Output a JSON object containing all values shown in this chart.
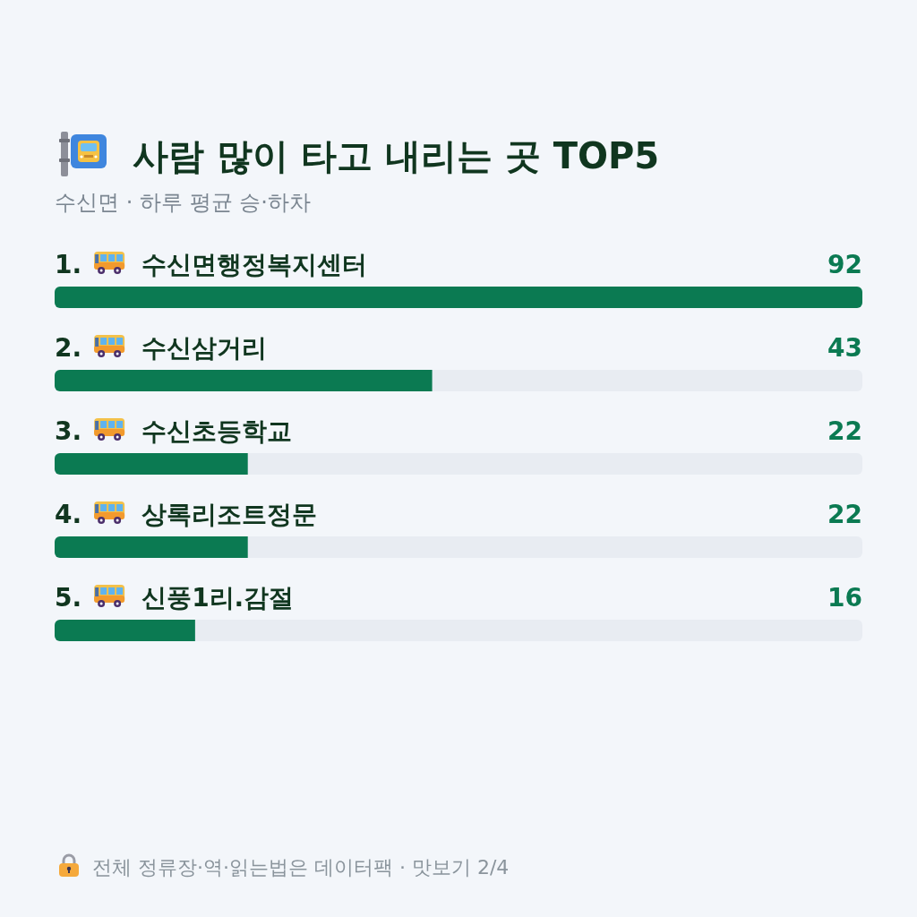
{
  "chart_data": {
    "type": "bar",
    "orientation": "horizontal",
    "title": "사람 많이 타고 내리는 곳 TOP5",
    "subtitle": "수신면 · 하루 평균 승·하차",
    "categories": [
      "1. 수신면행정복지센터",
      "2. 수신삼거리",
      "3. 수신초등학교",
      "4. 상록리조트정문",
      "5. 신풍1리.감절"
    ],
    "values": [
      92,
      43,
      22,
      22,
      16
    ],
    "color": "#0b7a52",
    "xlim": [
      0,
      92
    ],
    "data_labels": true,
    "annotations": [
      "전체 정류장·역·읽는법은 데이터팩 · 맛보기 2/4"
    ]
  }
}
